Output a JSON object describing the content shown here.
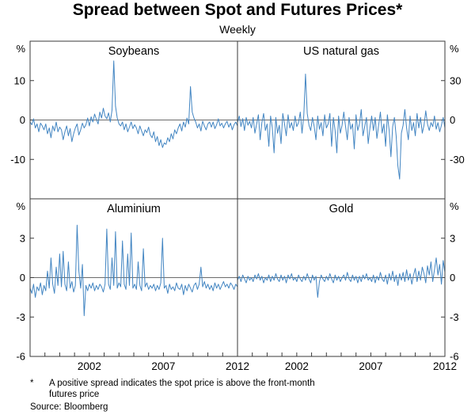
{
  "header": {
    "title": "Spread between Spot and Futures Prices*",
    "subtitle": "Weekly"
  },
  "footnotes": {
    "marker": "*",
    "line1": "A positive spread indicates the spot price is above the front-month",
    "line2": "futures price",
    "source": "Source: Bloomberg"
  },
  "colors": {
    "line": "#4285c2",
    "frame": "#3a3a3a",
    "zero_line": "#3a3a3a"
  },
  "chart_data": [
    {
      "type": "line",
      "title": "Soybeans",
      "position": "top-left",
      "axis_side": "left",
      "unit": "%",
      "ylim": [
        -20,
        20
      ],
      "y_ticks": [
        10,
        0,
        -10
      ],
      "xlim": [
        1998,
        2012
      ],
      "x_ticks": [
        2002,
        2007,
        2012
      ],
      "x_start": 1998,
      "x_step": 0.11765,
      "values": [
        -0.5,
        -1.2,
        0.3,
        -2.0,
        -1.0,
        -3.0,
        -0.8,
        -1.5,
        -2.5,
        -1.0,
        -3.5,
        -2.0,
        -4.5,
        -1.5,
        -2.8,
        -0.5,
        -3.0,
        -1.8,
        -2.5,
        -5.0,
        -3.0,
        -1.5,
        -4.0,
        -2.2,
        -5.5,
        -3.5,
        -2.0,
        -1.0,
        -3.8,
        -2.5,
        -0.8,
        -2.0,
        -1.2,
        0.5,
        -1.5,
        0.8,
        -0.5,
        1.5,
        0.2,
        -1.0,
        2.0,
        0.5,
        3.0,
        1.0,
        0.3,
        1.8,
        -0.5,
        2.5,
        15.0,
        3.5,
        0.5,
        -1.0,
        -1.5,
        -0.5,
        -2.5,
        -1.0,
        -3.0,
        -1.8,
        -0.5,
        -2.2,
        -1.2,
        -2.0,
        -3.5,
        -1.5,
        -2.8,
        -4.0,
        -2.5,
        -3.2,
        -1.8,
        -3.8,
        -4.5,
        -3.0,
        -5.5,
        -4.2,
        -6.5,
        -5.0,
        -7.0,
        -5.8,
        -6.2,
        -4.5,
        -5.5,
        -3.5,
        -4.8,
        -2.5,
        -3.5,
        -2.0,
        -1.0,
        -2.8,
        -0.5,
        -1.8,
        0.5,
        -1.0,
        8.5,
        2.0,
        0.5,
        -0.5,
        -2.0,
        -1.0,
        -2.8,
        -0.3,
        -1.5,
        -2.5,
        -1.0,
        -0.5,
        -1.8,
        -0.5,
        -2.2,
        -1.2,
        0.3,
        -1.5,
        -0.8,
        -2.0,
        -1.0,
        -0.3,
        -1.8,
        -0.8,
        -2.5,
        -1.2,
        -0.5,
        -1.5
      ]
    },
    {
      "type": "line",
      "title": "US natural gas",
      "position": "top-right",
      "axis_side": "right",
      "unit": "%",
      "ylim": [
        -60,
        60
      ],
      "y_ticks": [
        30,
        0,
        -30
      ],
      "xlim": [
        1998,
        2012
      ],
      "x_ticks": [
        2002,
        2007,
        2012
      ],
      "x_start": 1998,
      "x_step": 0.11765,
      "values": [
        -2,
        3,
        -5,
        1,
        -8,
        2,
        -4,
        -1,
        -6,
        2,
        -10,
        -3,
        4,
        -15,
        -2,
        5,
        -8,
        -3,
        -20,
        3,
        -6,
        -25,
        2,
        -10,
        -4,
        -18,
        5,
        -3,
        -12,
        4,
        -6,
        -2,
        -8,
        3,
        -5,
        -2,
        6,
        -10,
        3,
        35,
        5,
        -4,
        -8,
        2,
        -5,
        -15,
        3,
        -7,
        -2,
        -12,
        4,
        -6,
        -3,
        5,
        -20,
        2,
        -8,
        -25,
        3,
        -10,
        -4,
        6,
        -5,
        -15,
        2,
        -7,
        -3,
        -22,
        4,
        -8,
        -3,
        8,
        -12,
        -5,
        2,
        -18,
        -6,
        3,
        -8,
        2,
        -14,
        -4,
        6,
        -10,
        -3,
        -20,
        4,
        -8,
        -28,
        -5,
        2,
        -12,
        -35,
        -45,
        -10,
        -4,
        8,
        -6,
        -15,
        3,
        -8,
        -2,
        -12,
        5,
        -6,
        2,
        -10,
        -4,
        7,
        -3,
        -8,
        -2,
        -5,
        3,
        -7,
        -2,
        -9,
        -4,
        2,
        -6
      ]
    },
    {
      "type": "line",
      "title": "Aluminium",
      "position": "bottom-left",
      "axis_side": "left",
      "unit": "%",
      "ylim": [
        -6,
        6
      ],
      "y_ticks": [
        3,
        0,
        -3,
        -6
      ],
      "xlim": [
        1998,
        2012
      ],
      "x_ticks": [
        2002,
        2007,
        2012
      ],
      "x_start": 1998,
      "x_step": 0.11765,
      "values": [
        -0.8,
        -1.2,
        -0.5,
        -1.5,
        -0.7,
        -1.0,
        -0.4,
        -1.3,
        -0.6,
        -1.0,
        0.5,
        -0.8,
        1.5,
        -0.5,
        -1.2,
        0.8,
        -0.6,
        1.8,
        -0.7,
        2.0,
        -0.5,
        -1.0,
        1.2,
        -0.8,
        -0.3,
        -1.1,
        -0.6,
        4.0,
        0.5,
        -0.8,
        1.0,
        -2.9,
        -0.6,
        -1.0,
        -0.5,
        -0.8,
        -0.4,
        -1.0,
        -0.6,
        -0.9,
        -0.5,
        -0.7,
        -1.1,
        -0.5,
        3.7,
        -0.5,
        -0.9,
        1.5,
        -0.6,
        3.5,
        -0.8,
        -0.4,
        -0.7,
        2.8,
        -0.5,
        -0.9,
        1.8,
        -0.6,
        3.4,
        -0.8,
        -0.5,
        -0.9,
        1.2,
        -0.6,
        -1.0,
        2.2,
        -0.7,
        -0.4,
        -0.9,
        -0.6,
        -0.8,
        -0.5,
        -1.0,
        -0.6,
        -0.9,
        -0.4,
        3.0,
        -0.8,
        -0.6,
        -1.2,
        -0.5,
        -0.9,
        -0.7,
        -1.0,
        -0.4,
        -0.8,
        -0.9,
        -0.5,
        -1.3,
        -0.6,
        -1.0,
        -0.5,
        -0.8,
        -1.1,
        -0.6,
        -0.4,
        -0.9,
        -0.5,
        0.8,
        -0.7,
        -0.3,
        -0.8,
        -0.5,
        -0.9,
        -0.6,
        -1.0,
        -0.4,
        -0.8,
        -0.5,
        -0.9,
        -0.6,
        -0.3,
        -0.7,
        -0.5,
        -0.8,
        -0.4,
        -0.6,
        -0.9,
        -0.5,
        -0.7
      ]
    },
    {
      "type": "line",
      "title": "Gold",
      "position": "bottom-right",
      "axis_side": "right",
      "unit": "%",
      "ylim": [
        -6,
        6
      ],
      "y_ticks": [
        3,
        0,
        -3,
        -6
      ],
      "xlim": [
        1998,
        2012
      ],
      "x_ticks": [
        2002,
        2007,
        2012
      ],
      "x_start": 1998,
      "x_step": 0.11765,
      "values": [
        -0.2,
        0.1,
        -0.3,
        0.2,
        -0.1,
        -0.4,
        0.1,
        -0.2,
        0.0,
        -0.3,
        0.2,
        -0.1,
        0.3,
        -0.2,
        0.1,
        -0.4,
        0.0,
        -0.2,
        0.2,
        -0.3,
        0.1,
        -0.2,
        0.3,
        -0.1,
        -0.3,
        0.2,
        -0.2,
        0.1,
        -0.4,
        0.2,
        -0.1,
        0.3,
        -0.2,
        0.0,
        -0.3,
        0.2,
        -0.1,
        -0.3,
        0.1,
        -0.2,
        0.3,
        -0.1,
        -0.4,
        0.2,
        -0.2,
        0.1,
        -1.5,
        -0.3,
        0.2,
        -0.1,
        -0.3,
        0.1,
        -0.2,
        0.3,
        -0.1,
        -0.4,
        0.2,
        -0.2,
        0.1,
        -0.3,
        0.0,
        0.2,
        -0.2,
        0.4,
        -0.1,
        -0.3,
        0.2,
        -0.2,
        0.1,
        -0.4,
        0.1,
        -0.3,
        0.2,
        -0.1,
        0.3,
        -0.2,
        0.0,
        -0.3,
        0.2,
        -0.4,
        0.1,
        -0.2,
        0.4,
        -0.1,
        -0.3,
        0.2,
        -0.5,
        0.3,
        -0.2,
        0.5,
        -0.3,
        0.2,
        -0.6,
        0.3,
        -0.2,
        0.4,
        -0.3,
        0.6,
        -0.2,
        0.3,
        -0.5,
        0.2,
        0.7,
        -0.3,
        0.5,
        -0.2,
        0.8,
        0.3,
        -0.4,
        0.9,
        0.2,
        1.2,
        -0.3,
        0.6,
        1.5,
        0.2,
        1.0,
        -0.5,
        1.3,
        0.4
      ]
    }
  ]
}
